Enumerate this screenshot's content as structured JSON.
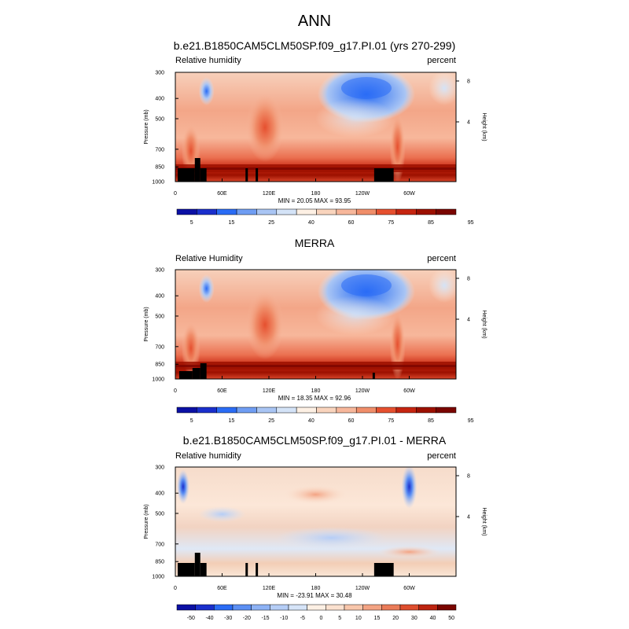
{
  "title": "ANN",
  "colors": {
    "blue_dark": "#0b10a4",
    "blue_mid": "#2a6cf5",
    "blue_light": "#a9c5f4",
    "neutral": "#fdf0e4",
    "red_light": "#f7b79b",
    "red_mid": "#e6502f",
    "red_dark": "#7a0500",
    "mask": "#000000"
  },
  "chart_data": [
    {
      "type": "heatmap",
      "title": "b.e21.B1850CAM5CLM50SP.f09_g17.PI.01 (yrs 270-299)",
      "left_label": "Relative humidity",
      "right_label": "percent",
      "ylabel": "Pressure (mb)",
      "y2label": "Height (km)",
      "y_ticks": [
        "300",
        "400",
        "500",
        "700",
        "850",
        "1000"
      ],
      "y2_ticks": [
        "8",
        "4"
      ],
      "x_ticks": [
        "0",
        "60E",
        "120E",
        "180",
        "120W",
        "60W"
      ],
      "ylim": [
        1000,
        300
      ],
      "xlim": [
        0,
        360
      ],
      "min_max_text": "MIN = 20.05 MAX = 93.95",
      "stats": {
        "min": 20.05,
        "max": 93.95
      },
      "colorbar_labels": [
        "5",
        "15",
        "25",
        "40",
        "60",
        "75",
        "85",
        "95"
      ],
      "features": [
        {
          "lon": 38,
          "p": 400,
          "value": 30
        },
        {
          "lon": 240,
          "p": 400,
          "value": 22
        },
        {
          "lon": 340,
          "p": 400,
          "value": 45
        },
        {
          "lon": 100,
          "p": 600,
          "value": 72
        },
        {
          "lon": 285,
          "p": 700,
          "value": 80
        },
        {
          "lon": 180,
          "p": 900,
          "value": 88
        }
      ]
    },
    {
      "type": "heatmap",
      "title": "MERRA",
      "left_label": "Relative Humidity",
      "right_label": "percent",
      "ylabel": "Pressure (mb)",
      "y2label": "Height (km)",
      "y_ticks": [
        "300",
        "400",
        "500",
        "700",
        "850",
        "1000"
      ],
      "y2_ticks": [
        "8",
        "4"
      ],
      "x_ticks": [
        "0",
        "60E",
        "120E",
        "180",
        "120W",
        "60W"
      ],
      "ylim": [
        1000,
        300
      ],
      "xlim": [
        0,
        360
      ],
      "min_max_text": "MIN = 18.35 MAX = 92.96",
      "stats": {
        "min": 18.35,
        "max": 92.96
      },
      "colorbar_labels": [
        "5",
        "15",
        "25",
        "40",
        "60",
        "75",
        "85",
        "95"
      ],
      "features": [
        {
          "lon": 42,
          "p": 450,
          "value": 30
        },
        {
          "lon": 245,
          "p": 400,
          "value": 20
        },
        {
          "lon": 340,
          "p": 400,
          "value": 45
        },
        {
          "lon": 120,
          "p": 600,
          "value": 75
        },
        {
          "lon": 285,
          "p": 650,
          "value": 82
        },
        {
          "lon": 180,
          "p": 900,
          "value": 88
        }
      ]
    },
    {
      "type": "heatmap",
      "title": "b.e21.B1850CAM5CLM50SP.f09_g17.PI.01 - MERRA",
      "left_label": "Relative humidity",
      "right_label": "percent",
      "ylabel": "Pressure (mb)",
      "y2label": "Height (km)",
      "y_ticks": [
        "300",
        "400",
        "500",
        "700",
        "850",
        "1000"
      ],
      "y2_ticks": [
        "8",
        "4"
      ],
      "x_ticks": [
        "0",
        "60E",
        "120E",
        "180",
        "120W",
        "60W"
      ],
      "ylim": [
        1000,
        300
      ],
      "xlim": [
        0,
        360
      ],
      "min_max_text": "MIN = -23.91 MAX = 30.48",
      "stats": {
        "min": -23.91,
        "max": 30.48
      },
      "colorbar_labels": [
        "-50",
        "-40",
        "-30",
        "-20",
        "-15",
        "-10",
        "-5",
        "0",
        "5",
        "10",
        "15",
        "20",
        "30",
        "40",
        "50"
      ],
      "features": [
        {
          "lon": 10,
          "p": 400,
          "value": -15
        },
        {
          "lon": 300,
          "p": 420,
          "value": -22
        },
        {
          "lon": 180,
          "p": 500,
          "value": 5
        },
        {
          "lon": 220,
          "p": 700,
          "value": 8
        }
      ]
    }
  ]
}
